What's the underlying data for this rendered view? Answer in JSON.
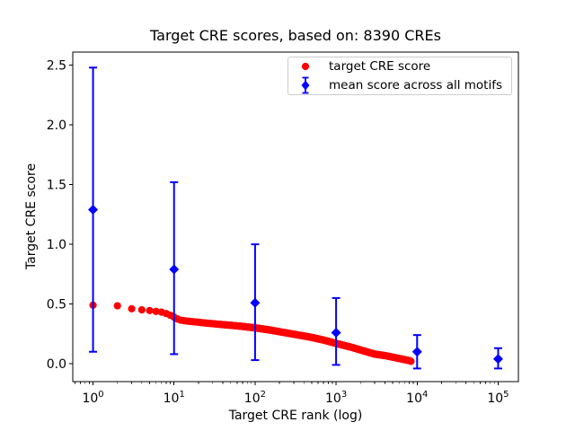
{
  "chart_data": {
    "type": "scatter",
    "title": "Target CRE scores, based on: 8390 CREs",
    "xlabel": "Target CRE rank (log)",
    "ylabel": "Target CRE score",
    "x_scale": "log",
    "xlim_log10": [
      -0.25,
      5.25
    ],
    "ylim": [
      -0.15,
      2.61
    ],
    "x_tick_exponents": [
      0,
      1,
      2,
      3,
      4,
      5
    ],
    "y_ticks": [
      0.0,
      0.5,
      1.0,
      1.5,
      2.0,
      2.5
    ],
    "grid": false,
    "colors": {
      "target_series": "#ff0000",
      "mean_series": "#0000ff",
      "spine": "#000000",
      "legend_border": "#cccccc",
      "background": "#ffffff"
    },
    "series": [
      {
        "name": "target CRE score",
        "marker": "circle",
        "color": "#ff0000",
        "n_points": 8390,
        "max_rank": 8390,
        "control_points": [
          [
            1,
            0.49
          ],
          [
            2,
            0.485
          ],
          [
            3,
            0.46
          ],
          [
            4,
            0.451
          ],
          [
            5,
            0.445
          ],
          [
            6,
            0.438
          ],
          [
            7,
            0.432
          ],
          [
            8,
            0.42
          ],
          [
            9,
            0.405
          ],
          [
            10,
            0.39
          ],
          [
            11,
            0.375
          ],
          [
            12,
            0.365
          ],
          [
            14,
            0.358
          ],
          [
            17,
            0.352
          ],
          [
            20,
            0.347
          ],
          [
            25,
            0.34
          ],
          [
            30,
            0.335
          ],
          [
            40,
            0.327
          ],
          [
            50,
            0.322
          ],
          [
            70,
            0.312
          ],
          [
            100,
            0.3
          ],
          [
            150,
            0.283
          ],
          [
            200,
            0.268
          ],
          [
            300,
            0.247
          ],
          [
            400,
            0.232
          ],
          [
            500,
            0.22
          ],
          [
            700,
            0.198
          ],
          [
            1000,
            0.17
          ],
          [
            1500,
            0.14
          ],
          [
            2000,
            0.115
          ],
          [
            3000,
            0.08
          ],
          [
            4000,
            0.068
          ],
          [
            5000,
            0.055
          ],
          [
            6000,
            0.044
          ],
          [
            7000,
            0.034
          ],
          [
            8000,
            0.026
          ],
          [
            8390,
            0.02
          ]
        ]
      },
      {
        "name": "mean score across all motifs",
        "marker": "diamond",
        "color": "#0000ff",
        "x": [
          1,
          10,
          100,
          1000,
          10000,
          100000
        ],
        "y": [
          1.29,
          0.79,
          0.51,
          0.26,
          0.1,
          0.04
        ],
        "bar_bottom": [
          0.1,
          0.08,
          0.03,
          -0.01,
          -0.04,
          -0.04
        ],
        "bar_top": [
          2.48,
          1.52,
          1.0,
          0.55,
          0.24,
          0.13
        ]
      }
    ],
    "legend": {
      "position": "upper right",
      "entries": [
        "target CRE score",
        "mean score across all motifs"
      ]
    }
  }
}
